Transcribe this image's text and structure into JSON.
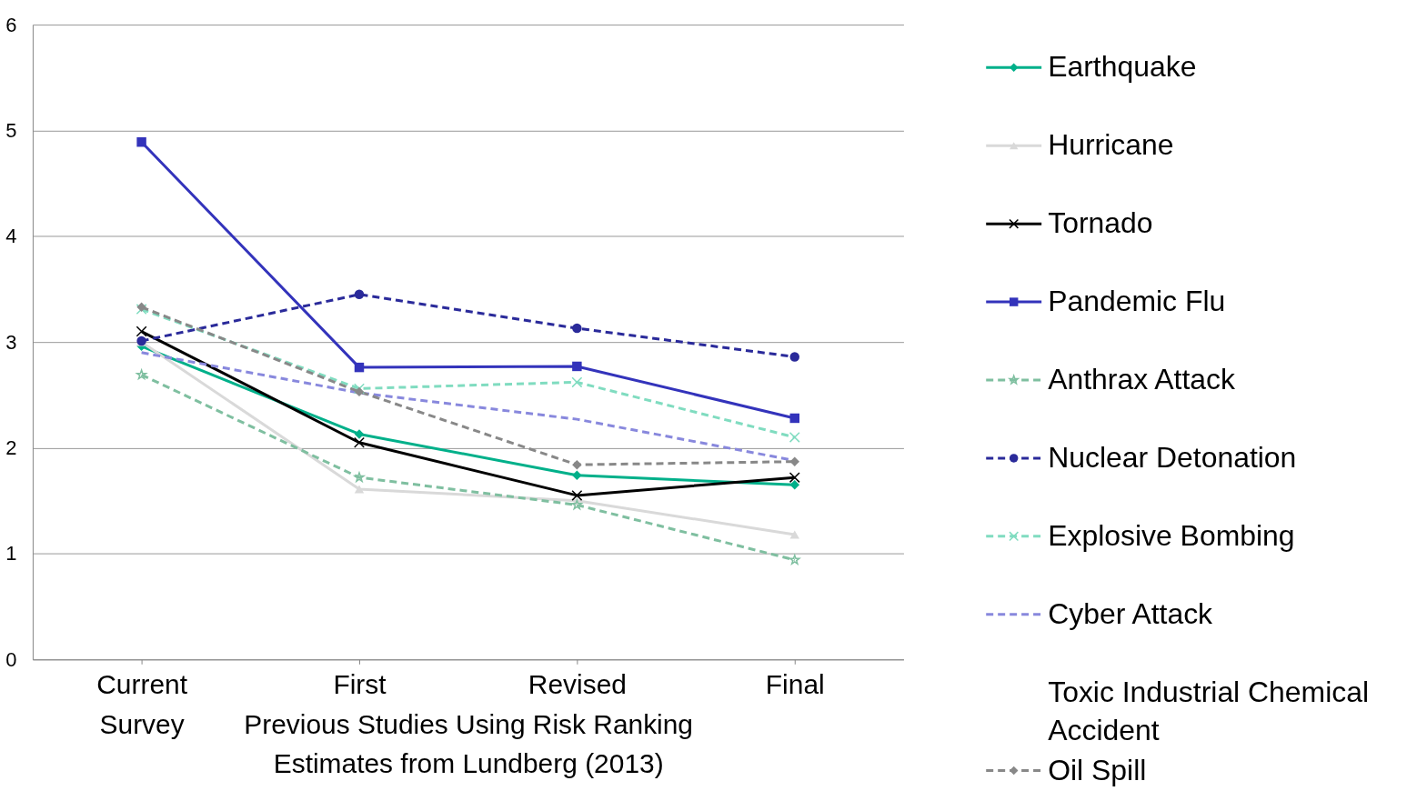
{
  "chart_data": {
    "type": "line",
    "categories": [
      "Current Survey",
      "First",
      "Revised",
      "Final"
    ],
    "xlabel": "Previous Studies Using Risk Ranking Estimates from Lundberg (2013)",
    "ylim": [
      0,
      6
    ],
    "yticks": [
      0,
      1,
      2,
      3,
      4,
      5,
      6
    ],
    "grid": "y",
    "legend": "right",
    "series": [
      {
        "name": "Earthquake",
        "color": "#00b08a",
        "marker": "diamond",
        "line_style": "solid",
        "values": [
          2.96,
          2.13,
          1.74,
          1.65
        ]
      },
      {
        "name": "Hurricane",
        "color": "#d9d9d9",
        "marker": "triangle",
        "line_style": "solid",
        "values": [
          3.0,
          1.61,
          1.5,
          1.18
        ]
      },
      {
        "name": "Tornado",
        "color": "#000000",
        "marker": "cross",
        "line_style": "solid",
        "values": [
          3.1,
          2.05,
          1.55,
          1.72
        ]
      },
      {
        "name": "Pandemic Flu",
        "color": "#3333bb",
        "marker": "square",
        "line_style": "solid",
        "values": [
          4.89,
          2.76,
          2.77,
          2.28
        ]
      },
      {
        "name": "Anthrax Attack",
        "color": "#7fbfa0",
        "marker": "star",
        "line_style": "dashed",
        "values": [
          2.69,
          1.72,
          1.46,
          0.94
        ]
      },
      {
        "name": "Nuclear Detonation",
        "color": "#2a2a9a",
        "marker": "circle",
        "line_style": "dashed",
        "values": [
          3.01,
          3.45,
          3.13,
          2.86
        ]
      },
      {
        "name": "Explosive Bombing",
        "color": "#80dcc0",
        "marker": "cross",
        "line_style": "dashed",
        "values": [
          3.31,
          2.56,
          2.62,
          2.1
        ]
      },
      {
        "name": "Cyber Attack",
        "color": "#8888dd",
        "marker": "none",
        "line_style": "dashed",
        "values": [
          2.9,
          2.52,
          2.27,
          1.88
        ]
      },
      {
        "name": "Toxic Industrial Chemical Accident",
        "marker": "none",
        "values": [
          null,
          null,
          null,
          null
        ]
      },
      {
        "name": "Oil Spill",
        "color": "#888888",
        "marker": "diamond",
        "line_style": "dashed",
        "values": [
          3.33,
          2.53,
          1.84,
          1.87
        ]
      }
    ]
  }
}
